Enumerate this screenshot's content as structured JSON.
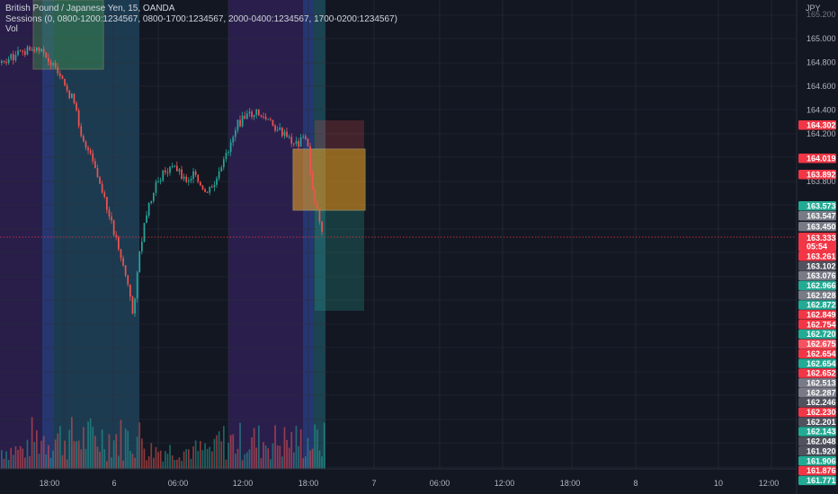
{
  "legend": {
    "title": "British Pound / Japanese Yen, 15, OANDA",
    "sessions": "Sessions (0, 0800-1200:1234567, 0800-1700:1234567, 2000-0400:1234567, 1700-0200:1234567)",
    "vol": "Vol"
  },
  "currency": "JPY",
  "price_axis": {
    "ticks": [
      {
        "v": 165.0,
        "t": "165.000"
      },
      {
        "v": 164.8,
        "t": "164.800"
      },
      {
        "v": 164.6,
        "t": "164.600"
      },
      {
        "v": 164.4,
        "t": "164.400"
      },
      {
        "v": 164.2,
        "t": "164.200"
      },
      {
        "v": 163.8,
        "t": "163.800"
      }
    ],
    "top_partial": "165.200"
  },
  "time_axis": [
    "18:00",
    "6",
    "06:00",
    "12:00",
    "18:00",
    "7",
    "06:00",
    "12:00",
    "18:00",
    "8",
    "10",
    "12:00"
  ],
  "current_price": {
    "price": "163.333",
    "countdown": "05:54",
    "color": "#f23645"
  },
  "badges": [
    {
      "t": "164.302",
      "c": "#f23645"
    },
    {
      "t": "164.019",
      "c": "#f23645"
    },
    {
      "t": "163.892",
      "c": "#f23645"
    },
    {
      "t": "163.573",
      "c": "#22ab94"
    },
    {
      "t": "163.547",
      "c": "#787b86"
    },
    {
      "t": "163.450",
      "c": "#787b86"
    },
    {
      "t": "163.261",
      "c": "#f23645"
    },
    {
      "t": "163.102",
      "c": "#50535e"
    },
    {
      "t": "163.076",
      "c": "#787b86"
    },
    {
      "t": "162.966",
      "c": "#22ab94"
    },
    {
      "t": "162.928",
      "c": "#787b86"
    },
    {
      "t": "162.872",
      "c": "#22ab94"
    },
    {
      "t": "162.849",
      "c": "#f23645"
    },
    {
      "t": "162.754",
      "c": "#f23645"
    },
    {
      "t": "162.720",
      "c": "#22ab94"
    },
    {
      "t": "162.675",
      "c": "#f7525f"
    },
    {
      "t": "162.654",
      "c": "#f23645"
    },
    {
      "t": "162.654",
      "c": "#22ab94"
    },
    {
      "t": "162.652",
      "c": "#f23645"
    },
    {
      "t": "162.513",
      "c": "#787b86"
    },
    {
      "t": "162.287",
      "c": "#787b86"
    },
    {
      "t": "162.246",
      "c": "#50535e"
    },
    {
      "t": "162.230",
      "c": "#f23645"
    },
    {
      "t": "162.201",
      "c": "#50535e"
    },
    {
      "t": "162.143",
      "c": "#22ab94"
    },
    {
      "t": "162.048",
      "c": "#50535e"
    },
    {
      "t": "161.920",
      "c": "#50535e"
    },
    {
      "t": "161.906",
      "c": "#22ab94"
    },
    {
      "t": "161.876",
      "c": "#f23645"
    },
    {
      "t": "161.771",
      "c": "#22ab94"
    }
  ],
  "colors": {
    "bull": "#26a69a",
    "bear": "#ef5350"
  }
}
